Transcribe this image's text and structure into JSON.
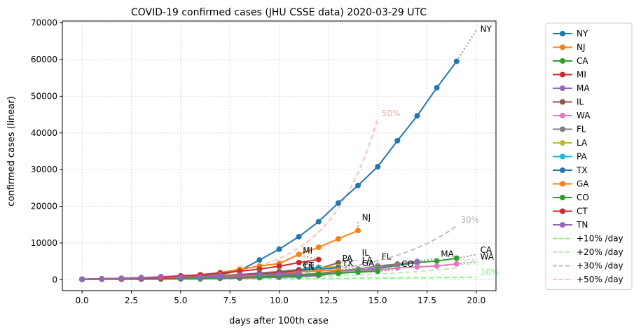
{
  "chart_data": {
    "type": "line",
    "title": "COVID-19 confirmed cases (JHU CSSE data) 2020-03-29 UTC",
    "xlabel": "days after 100th case",
    "ylabel": "confirmed cases (linear)",
    "xlim": [
      -1,
      21
    ],
    "ylim": [
      -3000,
      70500
    ],
    "xticks": [
      0,
      2.5,
      5,
      7.5,
      10,
      12.5,
      15,
      17.5,
      20
    ],
    "xtick_labels": [
      "0.0",
      "2.5",
      "5.0",
      "7.5",
      "10.0",
      "12.5",
      "15.0",
      "17.5",
      "20.0"
    ],
    "yticks": [
      0,
      10000,
      20000,
      30000,
      40000,
      50000,
      60000,
      70000
    ],
    "ytick_labels": [
      "0",
      "10000",
      "20000",
      "30000",
      "40000",
      "50000",
      "60000",
      "70000"
    ],
    "grid": true,
    "legend_position": "outside-right",
    "series": [
      {
        "name": "NY",
        "color": "#1f77b4",
        "values": [
          105,
          142,
          176,
          325,
          421,
          613,
          961,
          1374,
          2480,
          5365,
          8310,
          11710,
          15800,
          20884,
          25665,
          30811,
          37877,
          44635,
          52318,
          59513
        ],
        "proj_end": [
          20,
          68000
        ],
        "label_pos": [
          20.2,
          67500
        ]
      },
      {
        "name": "NJ",
        "color": "#ff7f0e",
        "values": [
          178,
          267,
          333,
          427,
          742,
          890,
          1327,
          1914,
          2844,
          3675,
          4402,
          6876,
          8825,
          11124,
          13386
        ],
        "proj_end": [
          14,
          15800
        ],
        "label_pos": [
          14.2,
          16200
        ]
      },
      {
        "name": "CA",
        "color": "#2ca02c",
        "values": [
          133,
          157,
          221,
          282,
          340,
          426,
          557,
          698,
          751,
          952,
          1177,
          1364,
          1646,
          2108,
          2538,
          2998,
          3899,
          4657,
          5095,
          5852
        ],
        "proj_end": [
          20,
          6800
        ],
        "label_pos": [
          20.2,
          7300
        ]
      },
      {
        "name": "MI",
        "color": "#d62728",
        "values": [
          110,
          267,
          387,
          554,
          787,
          1037,
          1329,
          1793,
          2294,
          2878,
          3657,
          4650,
          5486
        ],
        "proj_end": [
          11,
          6800
        ],
        "label_pos": [
          11.2,
          7100
        ]
      },
      {
        "name": "MA",
        "color": "#9467bd",
        "values": [
          108,
          123,
          138,
          164,
          197,
          218,
          218,
          328,
          413,
          525,
          646,
          777,
          1159,
          1838,
          2417,
          3240,
          4257,
          4955
        ],
        "proj_end": [
          18,
          5800
        ],
        "label_pos": [
          18.2,
          6300
        ]
      },
      {
        "name": "IL",
        "color": "#8c564b",
        "values": [
          105,
          161,
          162,
          288,
          422,
          585,
          753,
          1049,
          1285,
          1537,
          1865,
          2538,
          3026,
          4596
        ],
        "proj_end": [
          14,
          5300
        ],
        "label_pos": [
          14.2,
          6500
        ]
      },
      {
        "name": "WA",
        "color": "#e377c2",
        "values": [
          122,
          162,
          267,
          366,
          442,
          568,
          572,
          643,
          904,
          1076,
          1014,
          1376,
          1524,
          2221,
          2328,
          2591,
          3207,
          3477,
          3723,
          4311
        ],
        "proj_end": [
          20,
          4800
        ],
        "label_pos": [
          20.2,
          5500
        ]
      },
      {
        "name": "FL",
        "color": "#7f7f7f",
        "values": [
          100,
          146,
          158,
          190,
          216,
          314,
          417,
          563,
          658,
          830,
          1227,
          1412,
          1682,
          2357,
          2900,
          3763,
          4246
        ],
        "proj_end": [
          16,
          4600
        ],
        "label_pos": [
          15.2,
          5500
        ]
      },
      {
        "name": "LA",
        "color": "#bcbd22",
        "values": [
          136,
          196,
          257,
          392,
          538,
          585,
          837,
          1172,
          1388,
          1795,
          2305,
          2746,
          3315,
          3540
        ],
        "proj_end": [
          14,
          3900
        ],
        "label_pos": [
          14.2,
          4500
        ]
      },
      {
        "name": "PA",
        "color": "#17becf",
        "values": [
          112,
          152,
          206,
          283,
          371,
          479,
          644,
          851,
          1127,
          1687,
          2218,
          2751,
          3394
        ],
        "proj_end": [
          12,
          3800
        ],
        "label_pos": [
          13.2,
          5000
        ]
      },
      {
        "name": "TX",
        "color": "#1f77b4",
        "values": [
          110,
          194,
          259,
          304,
          410,
          563,
          627,
          943,
          1396,
          1731,
          1937,
          2552,
          2877,
          3266
        ],
        "proj_end": [
          13,
          3500
        ],
        "label_pos": [
          13.2,
          3700
        ]
      },
      {
        "name": "GA",
        "color": "#ff7f0e",
        "values": [
          121,
          146,
          197,
          287,
          420,
          507,
          600,
          772,
          1097,
          1247,
          1525,
          2198,
          2366,
          2651
        ],
        "proj_end": [
          14,
          3200
        ],
        "label_pos": [
          14.2,
          3700
        ]
      },
      {
        "name": "CO",
        "color": "#2ca02c",
        "values": [
          101,
          131,
          160,
          183,
          216,
          277,
          364,
          475,
          591,
          720,
          912,
          1086,
          1430,
          1734,
          2061,
          2311
        ],
        "proj_end": [
          16,
          2800
        ],
        "label_pos": [
          16.2,
          3500
        ]
      },
      {
        "name": "CT",
        "color": "#d62728",
        "values": [
          159,
          194,
          223,
          327,
          415,
          618,
          875,
          1012,
          1291,
          1524,
          1993,
          2571
        ],
        "proj_end": [
          11,
          3100
        ],
        "label_pos": [
          11.2,
          3100
        ]
      },
      {
        "name": "TN",
        "color": "#9467bd",
        "values": [
          154,
          228,
          371,
          505,
          615,
          667,
          784,
          957,
          1203,
          1373,
          1537,
          1834
        ],
        "proj_end": [
          11,
          2200
        ],
        "label_pos": [
          11.2,
          2600
        ]
      }
    ],
    "reference_lines": [
      {
        "name": "+10% /day",
        "color": "#7fff7f",
        "rate": 0.1,
        "x_end": 20,
        "label": "10%",
        "label_color": "#7fff7f",
        "label_pos": [
          20.2,
          1300
        ]
      },
      {
        "name": "+20% /day",
        "color": "#bfe6bf",
        "rate": 0.2,
        "x_end": 19,
        "label": "20%",
        "label_color": "#bfe6bf",
        "label_pos": [
          19.2,
          4000
        ]
      },
      {
        "name": "+30% /day",
        "color": "#bfbfbf",
        "rate": 0.3,
        "x_end": 19,
        "label": "30%",
        "label_color": "#b0b0b0",
        "label_pos": [
          19.2,
          15500
        ]
      },
      {
        "name": "+50% /day",
        "color": "#ffbfbf",
        "rate": 0.5,
        "x_end": 15,
        "label": "50%",
        "label_color": "#ffaaaa",
        "label_pos": [
          15.2,
          44500
        ]
      }
    ]
  }
}
